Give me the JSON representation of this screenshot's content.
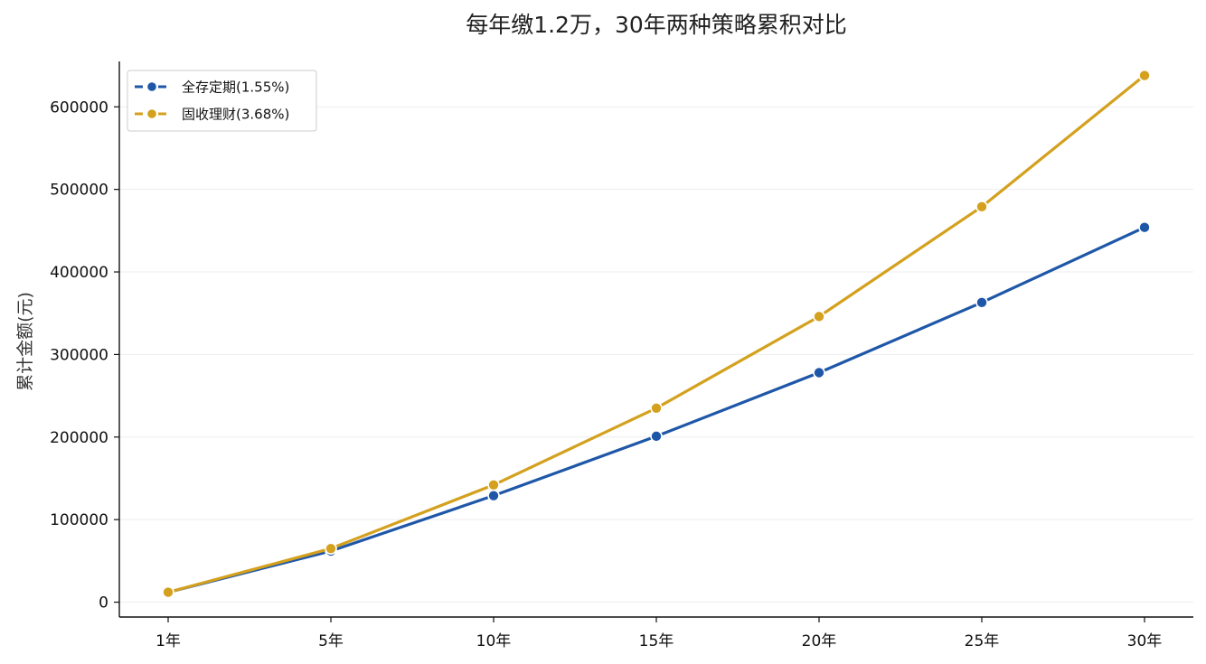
{
  "chart_data": {
    "type": "line",
    "title": "每年缴1.2万，30年两种策略累积对比",
    "xlabel": "",
    "ylabel": "累计金额(元)",
    "categories": [
      "1年",
      "5年",
      "10年",
      "15年",
      "20年",
      "25年",
      "30年"
    ],
    "ylim": [
      -18000,
      655000
    ],
    "yticks": [
      0,
      100000,
      200000,
      300000,
      400000,
      500000,
      600000
    ],
    "grid": "horizontal",
    "legend_position": "top-left",
    "series": [
      {
        "name": "全存定期(1.55%)",
        "color": "#1f57a8",
        "values": [
          12000,
          62000,
          129000,
          201000,
          278000,
          363000,
          454000
        ]
      },
      {
        "name": "固收理财(3.68%)",
        "color": "#d4a11e",
        "values": [
          12000,
          65000,
          142000,
          235000,
          346000,
          479000,
          638000
        ]
      }
    ]
  }
}
